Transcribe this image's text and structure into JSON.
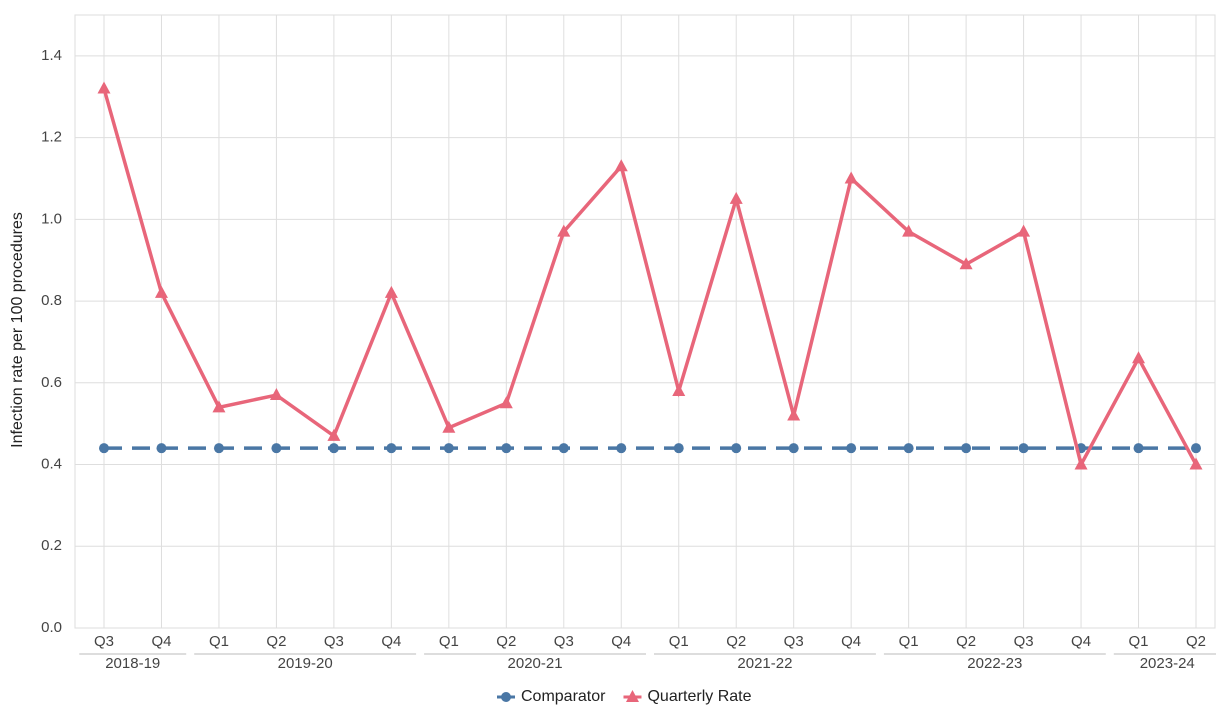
{
  "chart_data": {
    "type": "line",
    "y_label": "Infection rate per 100 procedures",
    "categories": [
      "Q3",
      "Q4",
      "Q1",
      "Q2",
      "Q3",
      "Q4",
      "Q1",
      "Q2",
      "Q3",
      "Q4",
      "Q1",
      "Q2",
      "Q3",
      "Q4",
      "Q1",
      "Q2",
      "Q3",
      "Q4",
      "Q1",
      "Q2"
    ],
    "x_groups": [
      {
        "label": "2018-19",
        "start": 0,
        "end": 1
      },
      {
        "label": "2019-20",
        "start": 2,
        "end": 5
      },
      {
        "label": "2020-21",
        "start": 6,
        "end": 9
      },
      {
        "label": "2021-22",
        "start": 10,
        "end": 13
      },
      {
        "label": "2022-23",
        "start": 14,
        "end": 17
      },
      {
        "label": "2023-24",
        "start": 18,
        "end": 19
      }
    ],
    "series": [
      {
        "name": "Comparator",
        "color": "#4a77a5",
        "marker": "circle",
        "dash": true,
        "values": [
          0.44,
          0.44,
          0.44,
          0.44,
          0.44,
          0.44,
          0.44,
          0.44,
          0.44,
          0.44,
          0.44,
          0.44,
          0.44,
          0.44,
          0.44,
          0.44,
          0.44,
          0.44,
          0.44,
          0.44
        ]
      },
      {
        "name": "Quarterly Rate",
        "color": "#e8667a",
        "marker": "triangle",
        "dash": false,
        "values": [
          1.32,
          0.82,
          0.54,
          0.57,
          0.47,
          0.82,
          0.49,
          0.55,
          0.97,
          1.13,
          0.58,
          1.05,
          0.52,
          1.1,
          0.97,
          0.89,
          0.97,
          0.4,
          0.66,
          0.4
        ]
      }
    ],
    "ylim": [
      0,
      1.5
    ],
    "yticks": [
      {
        "value": 0,
        "label": "0.0"
      },
      0.2,
      0.4,
      0.6,
      0.8,
      {
        "value": 1,
        "label": "1.0"
      },
      1.2,
      1.4
    ],
    "grid": true,
    "legend": "bottom"
  }
}
